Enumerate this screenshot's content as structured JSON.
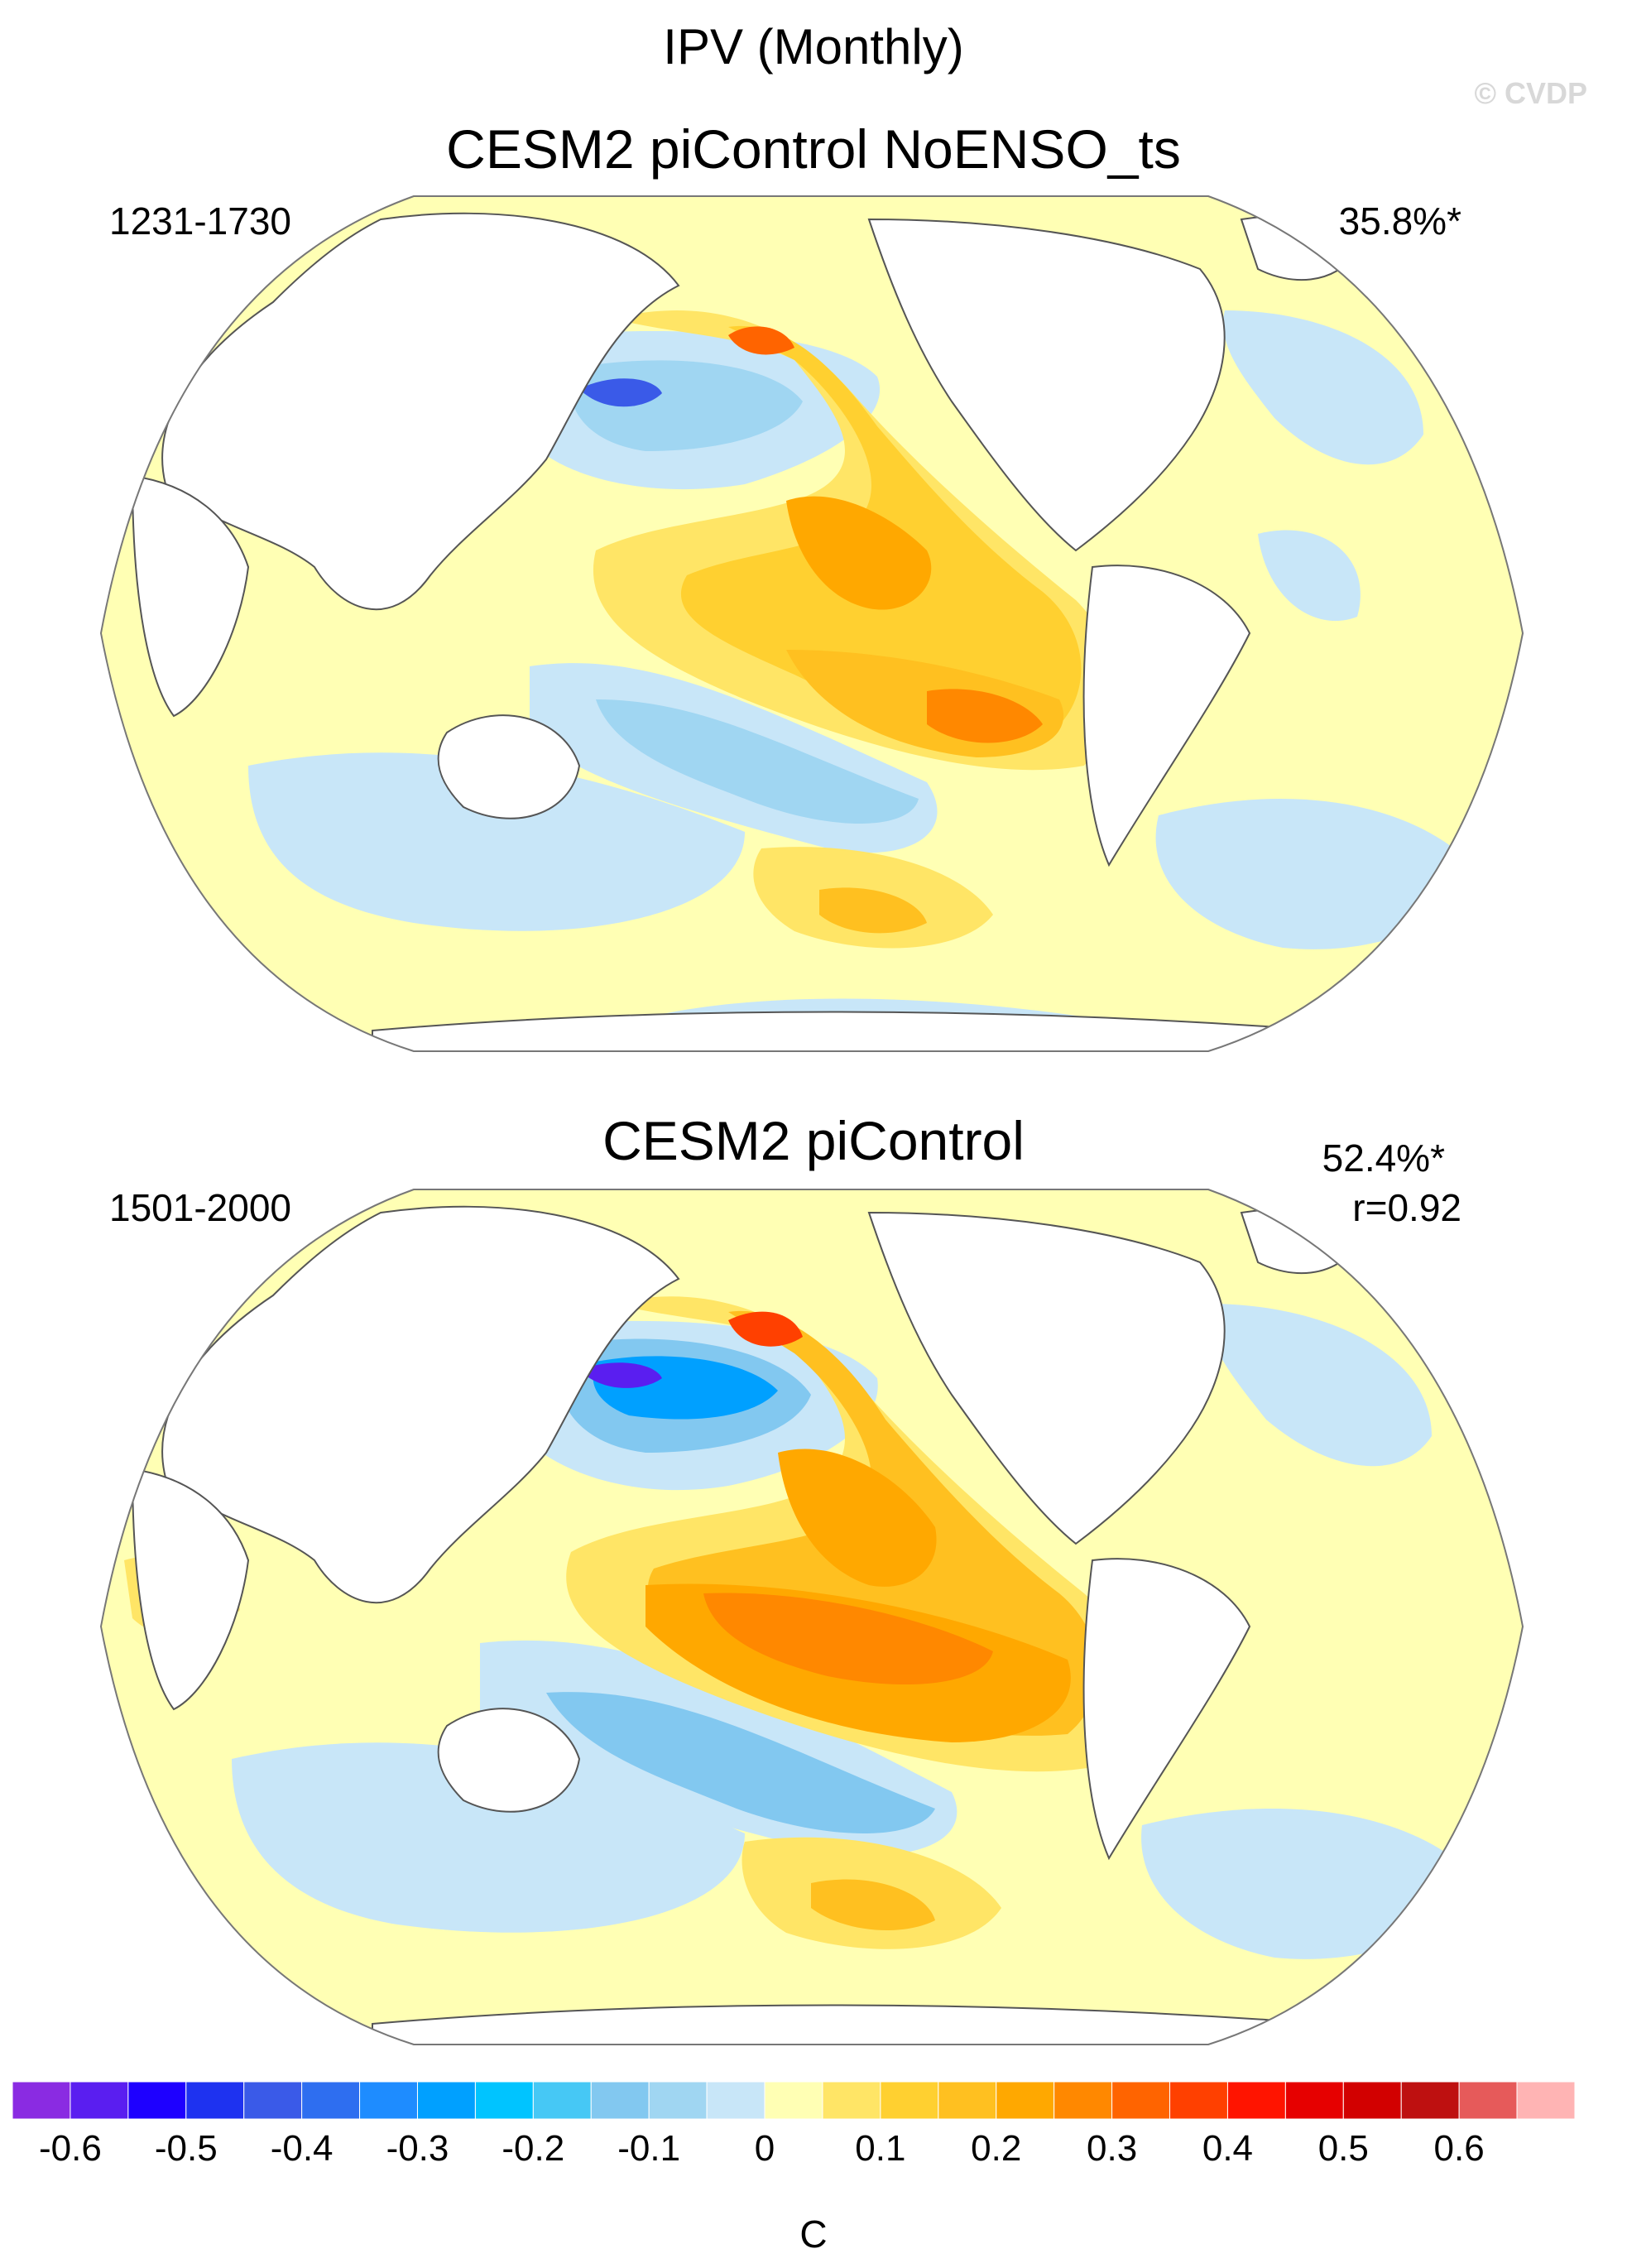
{
  "title": "IPV (Monthly)",
  "watermark": "© CVDP",
  "panels": [
    {
      "title": "CESM2 piControl NoENSO_ts",
      "period": "1231-1730",
      "variance": "35.8%*",
      "corr": ""
    },
    {
      "title": "CESM2 piControl",
      "period": "1501-2000",
      "variance": "52.4%*",
      "corr": "r=0.92"
    }
  ],
  "colorbar": {
    "unit": "C",
    "tick_labels": [
      "-0.6",
      "-0.5",
      "-0.4",
      "-0.3",
      "-0.2",
      "-0.1",
      "0",
      "0.1",
      "0.2",
      "0.3",
      "0.4",
      "0.5",
      "0.6"
    ],
    "colors": [
      "#8a2be2",
      "#5a1ef0",
      "#1e00ff",
      "#1e32f0",
      "#3a5ae8",
      "#2e6ef0",
      "#1e8cff",
      "#00a0ff",
      "#00c4ff",
      "#46c8f5",
      "#82c8f0",
      "#a0d6f2",
      "#c8e6f8",
      "#ffffb4",
      "#ffe566",
      "#ffd030",
      "#ffc020",
      "#ffa800",
      "#ff8800",
      "#ff6400",
      "#ff4000",
      "#ff1400",
      "#e60000",
      "#d20000",
      "#be1010",
      "#e65a5a",
      "#ffb4b4"
    ]
  },
  "palette": {
    "land": "#ffffff",
    "coast": "#555555",
    "outline": "#777777",
    "near_zero_pos": "#ffffb4",
    "near_zero_neg": "#c8e6f8"
  }
}
